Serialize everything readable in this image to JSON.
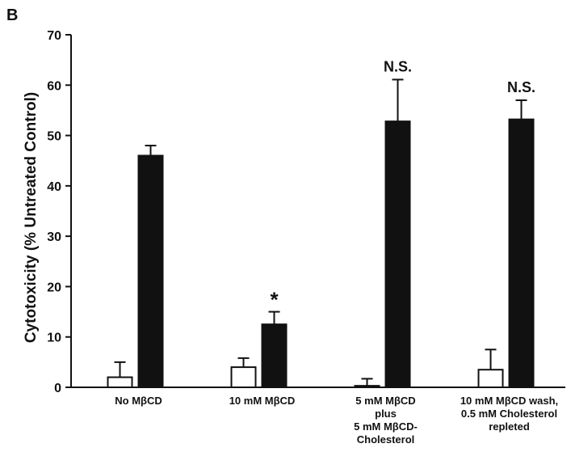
{
  "panel_label": "B",
  "chart_data": {
    "type": "bar",
    "ylabel": "Cytotoxicity (% Untreated Control)",
    "xlabel": "",
    "ylim": [
      0,
      70
    ],
    "yticks": [
      0,
      10,
      20,
      30,
      40,
      50,
      60,
      70
    ],
    "categories": [
      [
        "No MβCD"
      ],
      [
        "10 mM MβCD"
      ],
      [
        "5 mM MβCD",
        "plus",
        "5 mM MβCD-",
        "Cholesterol"
      ],
      [
        "10 mM MβCD wash,",
        "0.5 mM Cholesterol",
        "repleted"
      ]
    ],
    "series": [
      {
        "fill": "#ffffff",
        "values": [
          2,
          4,
          0.3,
          3.5
        ],
        "errors": [
          3,
          1.8,
          1.4,
          4
        ]
      },
      {
        "fill": "#111111",
        "values": [
          46,
          12.5,
          52.8,
          53.2
        ],
        "errors": [
          2,
          2.5,
          8.3,
          3.8
        ]
      }
    ],
    "annotations": [
      {
        "category": 1,
        "series": 1,
        "text": "*"
      },
      {
        "category": 2,
        "series": 1,
        "text": "N.S."
      },
      {
        "category": 3,
        "series": 1,
        "text": "N.S."
      }
    ],
    "grid": false,
    "legend": "none"
  }
}
